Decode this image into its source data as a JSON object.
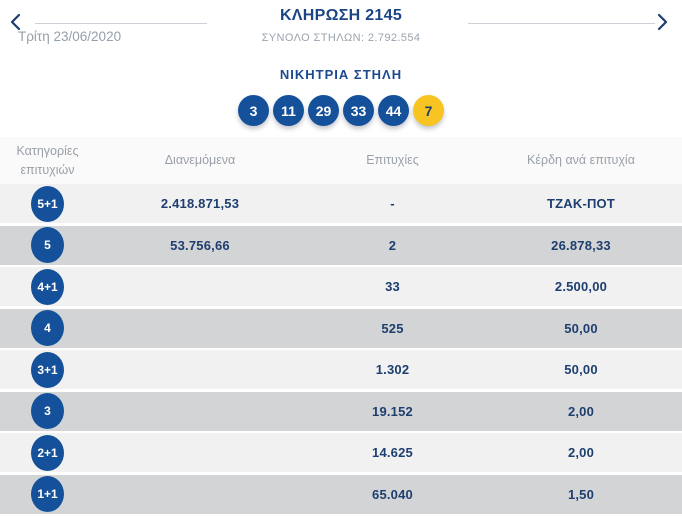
{
  "colors": {
    "brand_blue": "#1c4586",
    "ball_blue": "#15519a",
    "joker_yellow": "#f8c422",
    "text_navy": "#1d3e6e",
    "text_gray": "#95a0aa",
    "row_light": "#f1f1f2",
    "row_dark": "#d3d4d6"
  },
  "icons": {
    "prev": "chevron-left",
    "next": "chevron-right"
  },
  "header": {
    "title": "ΚΛΗΡΩΣΗ 2145",
    "total": "ΣΥΝΟΛΟ ΣΤΗΛΩΝ: 2.792.554",
    "date": "Τρίτη 23/06/2020"
  },
  "winning": {
    "title": "ΝΙΚΗΤΡΙΑ ΣΤΗΛΗ",
    "numbers": [
      "3",
      "11",
      "29",
      "33",
      "44"
    ],
    "joker": "7"
  },
  "table": {
    "headers": [
      "Κατηγορίες επιτυχιών",
      "Διανεμόμενα",
      "Επιτυχίες",
      "Κέρδη ανά επιτυχία"
    ],
    "rows": [
      {
        "category": "5+1",
        "distributed": "2.418.871,53",
        "wins": "-",
        "prize": "ΤΖΑΚ-ΠΟΤ"
      },
      {
        "category": "5",
        "distributed": "53.756,66",
        "wins": "2",
        "prize": "26.878,33"
      },
      {
        "category": "4+1",
        "distributed": "",
        "wins": "33",
        "prize": "2.500,00"
      },
      {
        "category": "4",
        "distributed": "",
        "wins": "525",
        "prize": "50,00"
      },
      {
        "category": "3+1",
        "distributed": "",
        "wins": "1.302",
        "prize": "50,00"
      },
      {
        "category": "3",
        "distributed": "",
        "wins": "19.152",
        "prize": "2,00"
      },
      {
        "category": "2+1",
        "distributed": "",
        "wins": "14.625",
        "prize": "2,00"
      },
      {
        "category": "1+1",
        "distributed": "",
        "wins": "65.040",
        "prize": "1,50"
      }
    ]
  }
}
